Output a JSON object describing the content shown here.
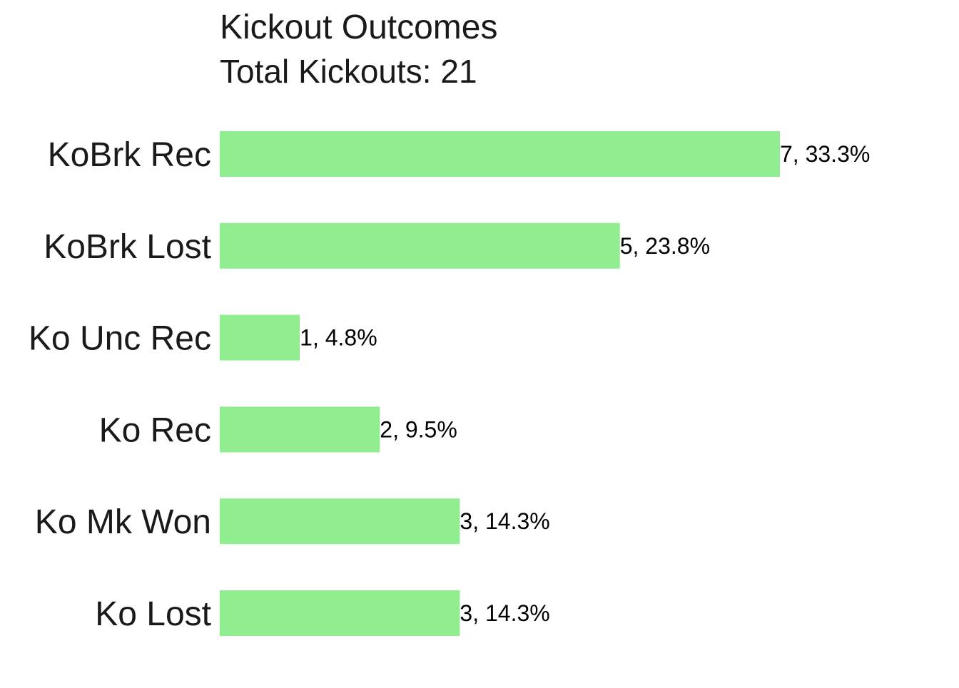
{
  "chart_data": {
    "type": "bar",
    "orientation": "horizontal",
    "title": "Kickout Outcomes",
    "subtitle": "Total Kickouts: 21",
    "xlabel": "",
    "ylabel": "",
    "categories": [
      "KoBrk Rec",
      "KoBrk Lost",
      "Ko Unc Rec",
      "Ko Rec",
      "Ko Mk Won",
      "Ko Lost"
    ],
    "values": [
      7,
      5,
      1,
      2,
      3,
      3
    ],
    "data_labels": [
      "7, 33.3%",
      "5, 23.8%",
      "1, 4.8%",
      "2, 9.5%",
      "3, 14.3%",
      "3, 14.3%"
    ],
    "xlim": [
      0,
      7
    ],
    "grid": false,
    "legend": "none",
    "colors": {
      "bar": "#90EE90",
      "text": "#1a1a1a"
    }
  }
}
